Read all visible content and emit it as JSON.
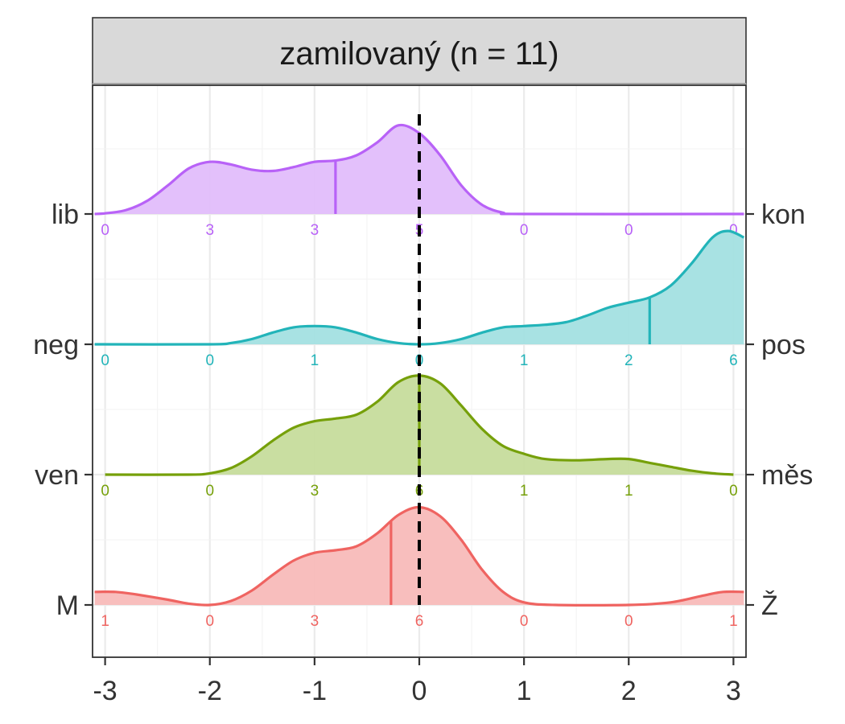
{
  "chart_data": {
    "type": "ridgeline-density",
    "title": "zamilovaný (n = 11)",
    "xlabel": "",
    "ylabel": "",
    "xlim": [
      -3.12,
      3.12
    ],
    "x_ticks": [
      "-3",
      "-2",
      "-1",
      "0",
      "1",
      "2",
      "3"
    ],
    "x_tick_values": [
      -3,
      -2,
      -1,
      0,
      1,
      2,
      3
    ],
    "reference_line_x": 0,
    "grid": true,
    "series": [
      {
        "left_label": "lib",
        "right_label": "kon",
        "color": "#b862f7",
        "fill": "#e1bdfb",
        "median": -0.8,
        "counts": [
          "0",
          "3",
          "3",
          "5",
          "0",
          "0",
          "0"
        ],
        "density": [
          [
            -3.1,
            0
          ],
          [
            -3.0,
            0.005
          ],
          [
            -2.8,
            0.03
          ],
          [
            -2.6,
            0.1
          ],
          [
            -2.4,
            0.22
          ],
          [
            -2.2,
            0.35
          ],
          [
            -2.0,
            0.4
          ],
          [
            -1.8,
            0.38
          ],
          [
            -1.6,
            0.34
          ],
          [
            -1.4,
            0.33
          ],
          [
            -1.2,
            0.36
          ],
          [
            -1.0,
            0.4
          ],
          [
            -0.8,
            0.41
          ],
          [
            -0.6,
            0.45
          ],
          [
            -0.4,
            0.55
          ],
          [
            -0.2,
            0.68
          ],
          [
            0.0,
            0.62
          ],
          [
            0.2,
            0.45
          ],
          [
            0.4,
            0.22
          ],
          [
            0.6,
            0.07
          ],
          [
            0.8,
            0.01
          ],
          [
            1.0,
            0
          ],
          [
            3.1,
            0
          ]
        ]
      },
      {
        "left_label": "neg",
        "right_label": "pos",
        "color": "#22b4b9",
        "fill": "#a3e0e1",
        "median": 2.2,
        "counts": [
          "0",
          "0",
          "1",
          "0",
          "1",
          "2",
          "6"
        ],
        "density": [
          [
            -3.1,
            0
          ],
          [
            -2.0,
            0
          ],
          [
            -1.8,
            0.01
          ],
          [
            -1.6,
            0.04
          ],
          [
            -1.4,
            0.09
          ],
          [
            -1.2,
            0.13
          ],
          [
            -1.0,
            0.14
          ],
          [
            -0.8,
            0.13
          ],
          [
            -0.6,
            0.09
          ],
          [
            -0.4,
            0.04
          ],
          [
            -0.2,
            0.01
          ],
          [
            0.0,
            0
          ],
          [
            0.2,
            0.01
          ],
          [
            0.4,
            0.04
          ],
          [
            0.6,
            0.09
          ],
          [
            0.8,
            0.13
          ],
          [
            1.0,
            0.14
          ],
          [
            1.2,
            0.15
          ],
          [
            1.4,
            0.17
          ],
          [
            1.6,
            0.22
          ],
          [
            1.8,
            0.28
          ],
          [
            2.0,
            0.32
          ],
          [
            2.2,
            0.36
          ],
          [
            2.4,
            0.45
          ],
          [
            2.6,
            0.62
          ],
          [
            2.8,
            0.82
          ],
          [
            2.95,
            0.87
          ],
          [
            3.1,
            0.82
          ]
        ]
      },
      {
        "left_label": "ven",
        "right_label": "měs",
        "color": "#76a00a",
        "fill": "#c6dc9c",
        "median": 0,
        "counts": [
          "0",
          "0",
          "3",
          "6",
          "1",
          "1",
          "0"
        ],
        "density": [
          [
            -3.0,
            0
          ],
          [
            -2.2,
            0
          ],
          [
            -2.0,
            0.01
          ],
          [
            -1.8,
            0.05
          ],
          [
            -1.6,
            0.14
          ],
          [
            -1.4,
            0.26
          ],
          [
            -1.2,
            0.36
          ],
          [
            -1.0,
            0.41
          ],
          [
            -0.8,
            0.43
          ],
          [
            -0.6,
            0.46
          ],
          [
            -0.4,
            0.56
          ],
          [
            -0.2,
            0.71
          ],
          [
            0.0,
            0.76
          ],
          [
            0.2,
            0.7
          ],
          [
            0.4,
            0.53
          ],
          [
            0.6,
            0.35
          ],
          [
            0.8,
            0.22
          ],
          [
            1.0,
            0.16
          ],
          [
            1.2,
            0.12
          ],
          [
            1.5,
            0.11
          ],
          [
            1.8,
            0.12
          ],
          [
            2.0,
            0.12
          ],
          [
            2.2,
            0.09
          ],
          [
            2.4,
            0.06
          ],
          [
            2.6,
            0.03
          ],
          [
            2.8,
            0.01
          ],
          [
            3.0,
            0
          ]
        ]
      },
      {
        "left_label": "M",
        "right_label": "Ž",
        "color": "#ef6461",
        "fill": "#f8bbb9",
        "median": -0.27,
        "counts": [
          "1",
          "0",
          "3",
          "6",
          "0",
          "0",
          "1"
        ],
        "density": [
          [
            -3.1,
            0.1
          ],
          [
            -2.9,
            0.1
          ],
          [
            -2.7,
            0.08
          ],
          [
            -2.4,
            0.04
          ],
          [
            -2.2,
            0.01
          ],
          [
            -2.0,
            0
          ],
          [
            -1.8,
            0.03
          ],
          [
            -1.6,
            0.11
          ],
          [
            -1.4,
            0.23
          ],
          [
            -1.2,
            0.34
          ],
          [
            -1.0,
            0.4
          ],
          [
            -0.8,
            0.42
          ],
          [
            -0.6,
            0.45
          ],
          [
            -0.4,
            0.55
          ],
          [
            -0.2,
            0.69
          ],
          [
            0.0,
            0.75
          ],
          [
            0.2,
            0.68
          ],
          [
            0.4,
            0.5
          ],
          [
            0.6,
            0.27
          ],
          [
            0.8,
            0.1
          ],
          [
            1.0,
            0.02
          ],
          [
            1.3,
            0
          ],
          [
            2.0,
            0
          ],
          [
            2.4,
            0.02
          ],
          [
            2.7,
            0.07
          ],
          [
            2.9,
            0.1
          ],
          [
            3.1,
            0.1
          ]
        ]
      }
    ]
  }
}
